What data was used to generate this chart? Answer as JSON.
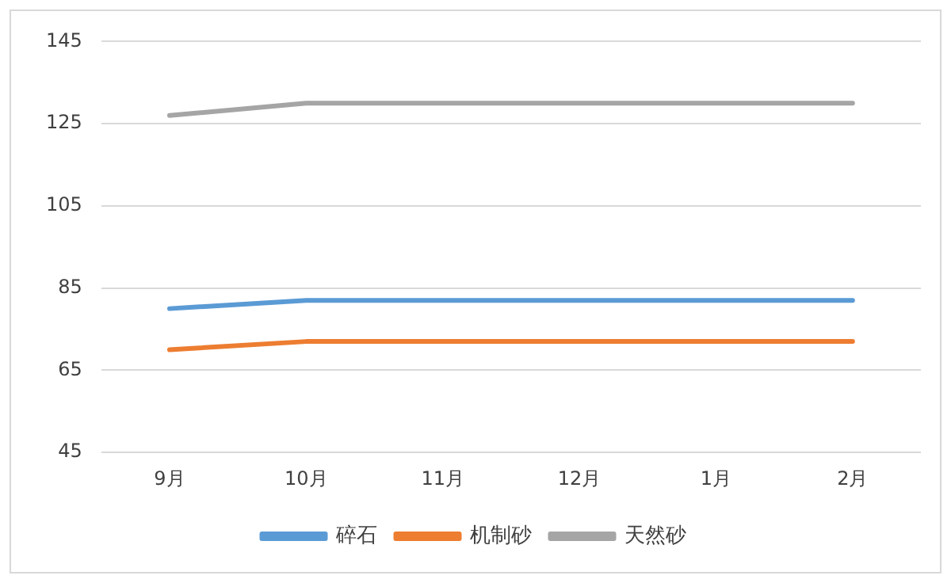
{
  "chart_data": {
    "type": "line",
    "categories": [
      "9月",
      "10月",
      "11月",
      "12月",
      "1月",
      "2月"
    ],
    "series": [
      {
        "name": "碎石",
        "color": "#5b9bd5",
        "values": [
          80,
          82,
          82,
          82,
          82,
          82
        ]
      },
      {
        "name": "机制砂",
        "color": "#ed7d31",
        "values": [
          70,
          72,
          72,
          72,
          72,
          72
        ]
      },
      {
        "name": "天然砂",
        "color": "#a5a5a5",
        "values": [
          127,
          130,
          130,
          130,
          130,
          130
        ]
      }
    ],
    "ylim": [
      45,
      145
    ],
    "yticks": [
      45,
      65,
      85,
      105,
      125,
      145
    ],
    "grid": "y",
    "legend": "bottom",
    "marker": "none",
    "line_style": "solid"
  }
}
